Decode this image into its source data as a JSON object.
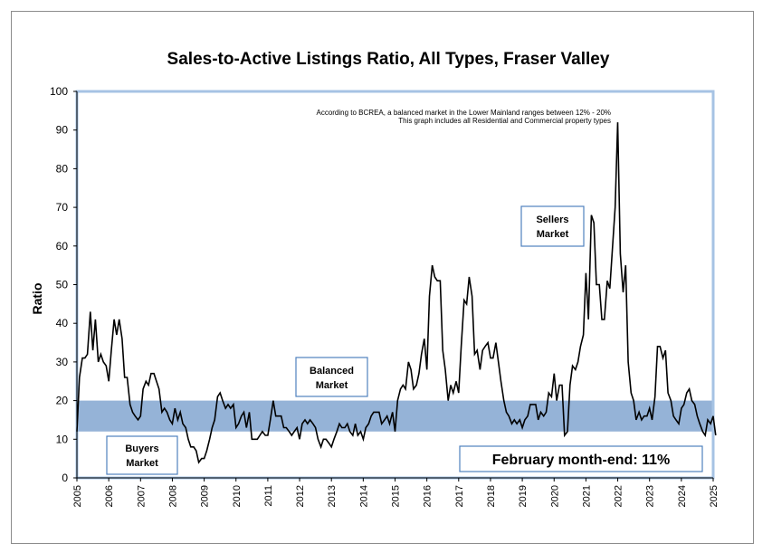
{
  "chart_data": {
    "type": "line",
    "title": "Sales-to-Active Listings Ratio, All Types, Fraser Valley",
    "ylabel": "Ratio",
    "xlabel": "",
    "ylim": [
      0,
      100
    ],
    "xlim": [
      2005,
      2025
    ],
    "yticks": [
      "0",
      "10",
      "20",
      "30",
      "40",
      "50",
      "60",
      "70",
      "80",
      "90",
      "100"
    ],
    "xticks": [
      "2005",
      "2006",
      "2007",
      "2008",
      "2009",
      "2010",
      "2011",
      "2012",
      "2013",
      "2014",
      "2015",
      "2016",
      "2017",
      "2018",
      "2019",
      "2020",
      "2021",
      "2022",
      "2023",
      "2024",
      "2025"
    ],
    "balanced_band": [
      12,
      20
    ],
    "notes": [
      "According to BCREA, a balanced market in the Lower Mainland ranges between 12% - 20%",
      "This graph includes all Residential and Commercial property types"
    ],
    "annotations": {
      "sellers_line1": "Sellers",
      "sellers_line2": "Market",
      "balanced_line1": "Balanced",
      "balanced_line2": "Market",
      "buyers_line1": "Buyers",
      "buyers_line2": "Market",
      "current": "February month-end: 11%"
    },
    "colors": {
      "band": "#95b3d7",
      "frame_blue": "#a6c3e4",
      "line": "#000000",
      "box_border": "#4f81bd"
    },
    "series": [
      {
        "values": [
          [
            2005.0,
            12
          ],
          [
            2005.08,
            26
          ],
          [
            2005.17,
            31
          ],
          [
            2005.25,
            31
          ],
          [
            2005.33,
            32
          ],
          [
            2005.42,
            43
          ],
          [
            2005.5,
            33
          ],
          [
            2005.58,
            41
          ],
          [
            2005.67,
            30
          ],
          [
            2005.75,
            32
          ],
          [
            2005.83,
            30
          ],
          [
            2005.92,
            29
          ],
          [
            2006.0,
            25
          ],
          [
            2006.08,
            33
          ],
          [
            2006.17,
            41
          ],
          [
            2006.25,
            37
          ],
          [
            2006.33,
            41
          ],
          [
            2006.42,
            36
          ],
          [
            2006.5,
            26
          ],
          [
            2006.58,
            26
          ],
          [
            2006.67,
            19
          ],
          [
            2006.75,
            17
          ],
          [
            2006.83,
            16
          ],
          [
            2006.92,
            15
          ],
          [
            2007.0,
            16
          ],
          [
            2007.08,
            23
          ],
          [
            2007.17,
            25
          ],
          [
            2007.25,
            24
          ],
          [
            2007.33,
            27
          ],
          [
            2007.42,
            27
          ],
          [
            2007.5,
            25
          ],
          [
            2007.58,
            23
          ],
          [
            2007.67,
            17
          ],
          [
            2007.75,
            18
          ],
          [
            2007.83,
            17
          ],
          [
            2007.92,
            15
          ],
          [
            2008.0,
            14
          ],
          [
            2008.08,
            18
          ],
          [
            2008.17,
            15
          ],
          [
            2008.25,
            17
          ],
          [
            2008.33,
            14
          ],
          [
            2008.42,
            13
          ],
          [
            2008.5,
            10
          ],
          [
            2008.58,
            8
          ],
          [
            2008.67,
            8
          ],
          [
            2008.75,
            7
          ],
          [
            2008.83,
            4
          ],
          [
            2008.92,
            5
          ],
          [
            2009.0,
            5
          ],
          [
            2009.08,
            7
          ],
          [
            2009.17,
            10
          ],
          [
            2009.25,
            13
          ],
          [
            2009.33,
            15
          ],
          [
            2009.42,
            21
          ],
          [
            2009.5,
            22
          ],
          [
            2009.58,
            20
          ],
          [
            2009.67,
            18
          ],
          [
            2009.75,
            19
          ],
          [
            2009.83,
            18
          ],
          [
            2009.92,
            19
          ],
          [
            2010.0,
            13
          ],
          [
            2010.08,
            14
          ],
          [
            2010.17,
            16
          ],
          [
            2010.25,
            17
          ],
          [
            2010.33,
            13
          ],
          [
            2010.42,
            17
          ],
          [
            2010.5,
            10
          ],
          [
            2010.58,
            10
          ],
          [
            2010.67,
            10
          ],
          [
            2010.75,
            11
          ],
          [
            2010.83,
            12
          ],
          [
            2010.92,
            11
          ],
          [
            2011.0,
            11
          ],
          [
            2011.08,
            15
          ],
          [
            2011.17,
            20
          ],
          [
            2011.25,
            16
          ],
          [
            2011.33,
            16
          ],
          [
            2011.42,
            16
          ],
          [
            2011.5,
            13
          ],
          [
            2011.58,
            13
          ],
          [
            2011.67,
            12
          ],
          [
            2011.75,
            11
          ],
          [
            2011.83,
            12
          ],
          [
            2011.92,
            13
          ],
          [
            2012.0,
            10
          ],
          [
            2012.08,
            14
          ],
          [
            2012.17,
            15
          ],
          [
            2012.25,
            14
          ],
          [
            2012.33,
            15
          ],
          [
            2012.42,
            14
          ],
          [
            2012.5,
            13
          ],
          [
            2012.58,
            10
          ],
          [
            2012.67,
            8
          ],
          [
            2012.75,
            10
          ],
          [
            2012.83,
            10
          ],
          [
            2012.92,
            9
          ],
          [
            2013.0,
            8
          ],
          [
            2013.08,
            10
          ],
          [
            2013.17,
            12
          ],
          [
            2013.25,
            14
          ],
          [
            2013.33,
            13
          ],
          [
            2013.42,
            13
          ],
          [
            2013.5,
            14
          ],
          [
            2013.58,
            12
          ],
          [
            2013.67,
            11
          ],
          [
            2013.75,
            14
          ],
          [
            2013.83,
            11
          ],
          [
            2013.92,
            12
          ],
          [
            2014.0,
            10
          ],
          [
            2014.08,
            13
          ],
          [
            2014.17,
            14
          ],
          [
            2014.25,
            16
          ],
          [
            2014.33,
            17
          ],
          [
            2014.42,
            17
          ],
          [
            2014.5,
            17
          ],
          [
            2014.58,
            14
          ],
          [
            2014.67,
            15
          ],
          [
            2014.75,
            16
          ],
          [
            2014.83,
            14
          ],
          [
            2014.92,
            17
          ],
          [
            2015.0,
            12
          ],
          [
            2015.08,
            20
          ],
          [
            2015.17,
            23
          ],
          [
            2015.25,
            24
          ],
          [
            2015.33,
            23
          ],
          [
            2015.42,
            30
          ],
          [
            2015.5,
            28
          ],
          [
            2015.58,
            23
          ],
          [
            2015.67,
            24
          ],
          [
            2015.75,
            27
          ],
          [
            2015.83,
            32
          ],
          [
            2015.92,
            36
          ],
          [
            2016.0,
            28
          ],
          [
            2016.08,
            47
          ],
          [
            2016.17,
            55
          ],
          [
            2016.25,
            52
          ],
          [
            2016.33,
            51
          ],
          [
            2016.42,
            51
          ],
          [
            2016.5,
            33
          ],
          [
            2016.58,
            28
          ],
          [
            2016.67,
            20
          ],
          [
            2016.75,
            24
          ],
          [
            2016.83,
            22
          ],
          [
            2016.92,
            25
          ],
          [
            2017.0,
            22
          ],
          [
            2017.08,
            34
          ],
          [
            2017.17,
            46
          ],
          [
            2017.25,
            45
          ],
          [
            2017.33,
            52
          ],
          [
            2017.42,
            47
          ],
          [
            2017.5,
            32
          ],
          [
            2017.58,
            33
          ],
          [
            2017.67,
            28
          ],
          [
            2017.75,
            33
          ],
          [
            2017.83,
            34
          ],
          [
            2017.92,
            35
          ],
          [
            2018.0,
            31
          ],
          [
            2018.08,
            31
          ],
          [
            2018.17,
            35
          ],
          [
            2018.25,
            30
          ],
          [
            2018.33,
            25
          ],
          [
            2018.42,
            20
          ],
          [
            2018.5,
            17
          ],
          [
            2018.58,
            16
          ],
          [
            2018.67,
            14
          ],
          [
            2018.75,
            15
          ],
          [
            2018.83,
            14
          ],
          [
            2018.92,
            15
          ],
          [
            2019.0,
            13
          ],
          [
            2019.08,
            15
          ],
          [
            2019.17,
            16
          ],
          [
            2019.25,
            19
          ],
          [
            2019.33,
            19
          ],
          [
            2019.42,
            19
          ],
          [
            2019.5,
            15
          ],
          [
            2019.58,
            17
          ],
          [
            2019.67,
            16
          ],
          [
            2019.75,
            17
          ],
          [
            2019.83,
            22
          ],
          [
            2019.92,
            21
          ],
          [
            2020.0,
            27
          ],
          [
            2020.08,
            20
          ],
          [
            2020.17,
            24
          ],
          [
            2020.25,
            24
          ],
          [
            2020.33,
            11
          ],
          [
            2020.42,
            12
          ],
          [
            2020.5,
            24
          ],
          [
            2020.58,
            29
          ],
          [
            2020.67,
            28
          ],
          [
            2020.75,
            30
          ],
          [
            2020.83,
            34
          ],
          [
            2020.92,
            37
          ],
          [
            2021.0,
            53
          ],
          [
            2021.08,
            41
          ],
          [
            2021.17,
            68
          ],
          [
            2021.25,
            66
          ],
          [
            2021.33,
            50
          ],
          [
            2021.42,
            50
          ],
          [
            2021.5,
            41
          ],
          [
            2021.58,
            41
          ],
          [
            2021.67,
            51
          ],
          [
            2021.75,
            49
          ],
          [
            2021.83,
            59
          ],
          [
            2021.92,
            70
          ],
          [
            2022.0,
            92
          ],
          [
            2022.08,
            58
          ],
          [
            2022.17,
            48
          ],
          [
            2022.25,
            55
          ],
          [
            2022.33,
            30
          ],
          [
            2022.42,
            22
          ],
          [
            2022.5,
            20
          ],
          [
            2022.58,
            15
          ],
          [
            2022.67,
            17
          ],
          [
            2022.75,
            15
          ],
          [
            2022.83,
            16
          ],
          [
            2022.92,
            16
          ],
          [
            2023.0,
            18
          ],
          [
            2023.08,
            15
          ],
          [
            2023.17,
            21
          ],
          [
            2023.25,
            34
          ],
          [
            2023.33,
            34
          ],
          [
            2023.42,
            31
          ],
          [
            2023.5,
            33
          ],
          [
            2023.58,
            22
          ],
          [
            2023.67,
            20
          ],
          [
            2023.75,
            16
          ],
          [
            2023.83,
            15
          ],
          [
            2023.92,
            14
          ],
          [
            2024.0,
            18
          ],
          [
            2024.08,
            19
          ],
          [
            2024.17,
            22
          ],
          [
            2024.25,
            23
          ],
          [
            2024.33,
            20
          ],
          [
            2024.42,
            19
          ],
          [
            2024.5,
            16
          ],
          [
            2024.58,
            14
          ],
          [
            2024.67,
            12
          ],
          [
            2024.75,
            11
          ],
          [
            2024.83,
            15
          ],
          [
            2024.92,
            14
          ],
          [
            2025.0,
            16
          ],
          [
            2025.08,
            11
          ]
        ]
      }
    ]
  }
}
